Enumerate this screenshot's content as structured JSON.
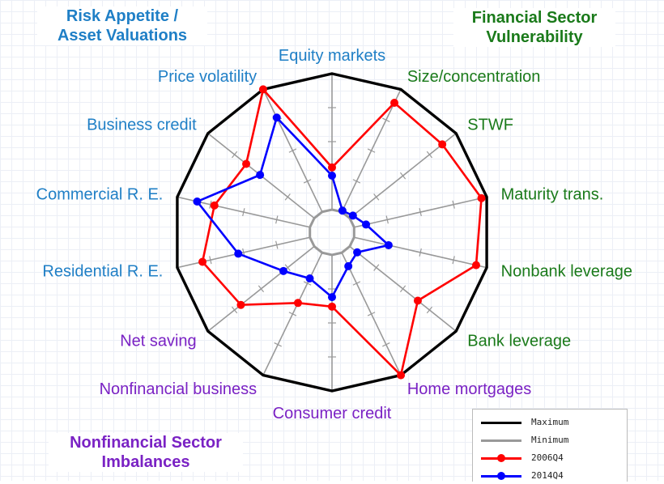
{
  "corner_titles": {
    "risk_appetite": "Risk Appetite /\nAsset Valuations",
    "financial_sector": "Financial Sector\nVulnerability",
    "nonfinancial": "Nonfinancial Sector\nImbalances"
  },
  "colors": {
    "risk_appetite": "#1f7fc6",
    "financial_sector": "#1a7a1a",
    "nonfinancial": "#7a22c4",
    "maximum": "#000000",
    "minimum": "#999999",
    "series_2006": "#ff0000",
    "series_2014": "#0000ff"
  },
  "chart_data": {
    "type": "radar",
    "axes": [
      {
        "label": "Equity markets",
        "group": "risk_appetite"
      },
      {
        "label": "Size/concentration",
        "group": "financial_sector"
      },
      {
        "label": "STWF",
        "group": "financial_sector"
      },
      {
        "label": "Maturity trans.",
        "group": "financial_sector"
      },
      {
        "label": "Nonbank leverage",
        "group": "financial_sector"
      },
      {
        "label": "Bank leverage",
        "group": "financial_sector"
      },
      {
        "label": "Home mortgages",
        "group": "nonfinancial"
      },
      {
        "label": "Consumer credit",
        "group": "nonfinancial"
      },
      {
        "label": "Nonfinancial business",
        "group": "nonfinancial"
      },
      {
        "label": "Net saving",
        "group": "nonfinancial"
      },
      {
        "label": "Residential R. E.",
        "group": "risk_appetite"
      },
      {
        "label": "Commercial R. E.",
        "group": "risk_appetite"
      },
      {
        "label": "Business credit",
        "group": "risk_appetite"
      },
      {
        "label": "Price volatility",
        "group": "risk_appetite"
      }
    ],
    "scale": [
      0,
      1
    ],
    "series": [
      {
        "name": "Maximum",
        "values": [
          1,
          1,
          1,
          1,
          1,
          1,
          1,
          1,
          1,
          1,
          1,
          1,
          1,
          1
        ]
      },
      {
        "name": "Minimum",
        "values": [
          0,
          0,
          0,
          0,
          0,
          0,
          0,
          0,
          0,
          0,
          0,
          0,
          0,
          0
        ]
      },
      {
        "name": "2006Q4",
        "values": [
          0.31,
          0.89,
          0.87,
          0.96,
          0.92,
          0.64,
          1.0,
          0.38,
          0.41,
          0.69,
          0.81,
          0.72,
          0.64,
          1.0
        ]
      },
      {
        "name": "2014Q4",
        "values": [
          0.25,
          0.01,
          0.03,
          0.09,
          0.26,
          0.07,
          0.11,
          0.31,
          0.21,
          0.29,
          0.54,
          0.85,
          0.51,
          0.77
        ]
      }
    ]
  },
  "legend": [
    {
      "label": "Maximum"
    },
    {
      "label": "Minimum"
    },
    {
      "label": "2006Q4"
    },
    {
      "label": "2014Q4"
    }
  ]
}
